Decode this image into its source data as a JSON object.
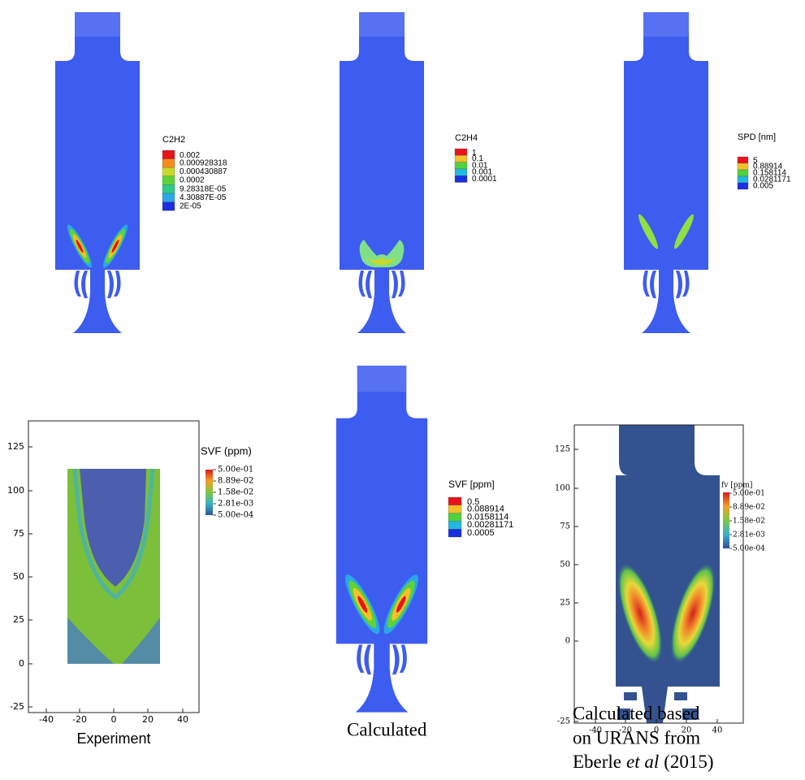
{
  "panels": [
    {
      "legend_title": "C2H2",
      "legend_labels": [
        "0.002",
        "0.000928318",
        "0.000430887",
        "0.0002",
        "9.28318E-05",
        "4.30887E-05",
        "2E-05"
      ]
    },
    {
      "legend_title": "C2H4",
      "legend_labels": [
        "1",
        "0.1",
        "0.01",
        "0.001",
        "0.0001"
      ]
    },
    {
      "legend_title": "SPD [nm]",
      "legend_labels": [
        "5",
        "0.88914",
        "0.158114",
        "0.0281171",
        "0.005"
      ]
    },
    {
      "legend_title": "SVF (ppm)",
      "legend_labels": [
        "5.00e-01",
        "8.89e-02",
        "1.58e-02",
        "2.81e-03",
        "5.00e-04"
      ],
      "yticks": [
        "125",
        "100",
        "75",
        "50",
        "25",
        "0",
        "-25"
      ],
      "xticks": [
        "-40",
        "-20",
        "0",
        "20",
        "40"
      ],
      "caption": "Experiment"
    },
    {
      "legend_title": "SVF  [ppm]",
      "legend_labels": [
        "0.5",
        "0.088914",
        "0.0158114",
        "0.00281171",
        "0.0005"
      ],
      "caption": "Calculated"
    },
    {
      "legend_title": "fv [ppm]",
      "legend_labels": [
        "5.00e-01",
        "8.89e-02",
        "1.58e-02",
        "2.81e-03",
        "5.00e-04"
      ],
      "yticks": [
        "125",
        "100",
        "75",
        "50",
        "25",
        "0",
        "-25"
      ],
      "xticks": [
        "-40",
        "-20",
        "0",
        "20",
        "40"
      ],
      "caption_lines": [
        "Calculated based",
        "on URANS from"
      ],
      "caption_author": "Eberle",
      "caption_etal": "et al",
      "caption_year": "(2015)"
    }
  ]
}
